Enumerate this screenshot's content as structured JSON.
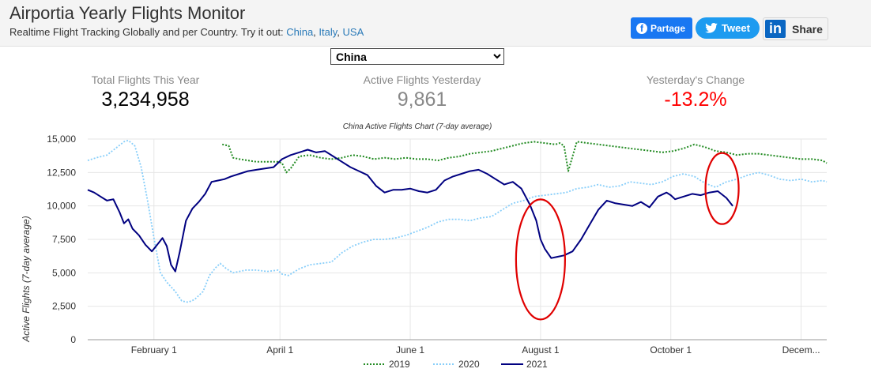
{
  "header": {
    "title": "Airportia Yearly Flights Monitor",
    "subtitle_text": "Realtime Flight Tracking Globally and per Country. Try it out:",
    "links": [
      "China",
      "Italy",
      "USA"
    ],
    "share_buttons": {
      "facebook_label": "Partage",
      "twitter_label": "Tweet",
      "linkedin_label": "Share"
    }
  },
  "country_select": {
    "selected": "China"
  },
  "stats": [
    {
      "label": "Total Flights This Year",
      "value": "3,234,958",
      "color": "#000000"
    },
    {
      "label": "Active Flights Yesterday",
      "value": "9,861",
      "color": "#888888"
    },
    {
      "label": "Yesterday's Change",
      "value": "-13.2%",
      "color": "#ff0000"
    }
  ],
  "colors": {
    "series_2019": "#228b22",
    "series_2020": "#87cefa",
    "series_2021": "#000080",
    "annotation": "#e00000"
  },
  "chart_data": {
    "type": "line",
    "title": "China Active Flights Chart (7-day average)",
    "ylabel": "Active Flights (7-day average)",
    "xlabel": "",
    "ylim": [
      0,
      15000
    ],
    "yticks": [
      "0",
      "2,500",
      "5,000",
      "7,500",
      "10,000",
      "12,500",
      "15,000"
    ],
    "x_range": [
      1,
      347
    ],
    "x_tick_labels": [
      "February 1",
      "April 1",
      "June 1",
      "August 1",
      "October 1",
      "Decem..."
    ],
    "x_tick_days": [
      32,
      91,
      152,
      213,
      274,
      335
    ],
    "grid": true,
    "legend_position": "bottom",
    "annotations": [
      "red ellipse around the early-August drop in 2021",
      "red ellipse around the mid-October decline in 2021"
    ],
    "series": [
      {
        "name": "2019",
        "style": "dotted",
        "x": [
          64,
          67,
          69,
          72,
          80,
          90,
          92,
          94,
          96,
          100,
          105,
          110,
          115,
          120,
          125,
          130,
          135,
          140,
          145,
          150,
          155,
          160,
          165,
          170,
          175,
          180,
          185,
          190,
          195,
          200,
          205,
          210,
          215,
          220,
          222,
          224,
          226,
          230,
          235,
          240,
          245,
          250,
          255,
          260,
          265,
          270,
          275,
          280,
          285,
          290,
          295,
          300,
          305,
          310,
          315,
          320,
          325,
          330,
          335,
          340,
          345,
          347
        ],
        "y": [
          14600,
          14500,
          13600,
          13500,
          13300,
          13300,
          13200,
          12500,
          12800,
          13700,
          13800,
          13600,
          13500,
          13600,
          13800,
          13700,
          13500,
          13600,
          13500,
          13600,
          13500,
          13500,
          13400,
          13600,
          13700,
          13900,
          14000,
          14100,
          14300,
          14500,
          14700,
          14800,
          14700,
          14600,
          14700,
          14500,
          12600,
          14800,
          14700,
          14600,
          14500,
          14400,
          14300,
          14200,
          14100,
          14000,
          14100,
          14300,
          14600,
          14400,
          14100,
          14000,
          13800,
          13900,
          13900,
          13800,
          13700,
          13600,
          13500,
          13500,
          13400,
          13200
        ]
      },
      {
        "name": "2020",
        "style": "dotted",
        "x": [
          1,
          5,
          10,
          14,
          18,
          20,
          23,
          26,
          29,
          32,
          35,
          38,
          42,
          45,
          48,
          51,
          55,
          58,
          61,
          63,
          66,
          69,
          72,
          75,
          80,
          85,
          90,
          92,
          95,
          100,
          105,
          110,
          115,
          120,
          125,
          130,
          135,
          140,
          145,
          150,
          155,
          160,
          165,
          170,
          175,
          180,
          185,
          190,
          195,
          200,
          205,
          210,
          215,
          220,
          225,
          230,
          235,
          240,
          245,
          250,
          255,
          260,
          265,
          270,
          275,
          280,
          285,
          290,
          295,
          300,
          305,
          310,
          315,
          320,
          325,
          330,
          335,
          340,
          345,
          347
        ],
        "y": [
          13400,
          13600,
          13800,
          14300,
          14800,
          14900,
          14500,
          12900,
          10400,
          7600,
          5000,
          4300,
          3600,
          2900,
          2800,
          3000,
          3600,
          4800,
          5400,
          5700,
          5300,
          5000,
          5100,
          5200,
          5200,
          5100,
          5200,
          4900,
          4800,
          5300,
          5600,
          5700,
          5800,
          6500,
          7000,
          7300,
          7500,
          7500,
          7600,
          7800,
          8100,
          8400,
          8800,
          9000,
          9000,
          8900,
          9100,
          9200,
          9700,
          10200,
          10400,
          10700,
          10800,
          10900,
          11000,
          11300,
          11400,
          11600,
          11400,
          11500,
          11800,
          11700,
          11600,
          11800,
          12200,
          12400,
          12200,
          11700,
          11400,
          11800,
          12000,
          12300,
          12500,
          12300,
          12000,
          11900,
          12000,
          11800,
          11900,
          11800
        ]
      },
      {
        "name": "2021",
        "style": "solid",
        "x": [
          1,
          4,
          7,
          10,
          13,
          16,
          18,
          20,
          22,
          25,
          28,
          31,
          34,
          36,
          38,
          40,
          42,
          44,
          47,
          50,
          53,
          56,
          59,
          62,
          65,
          68,
          72,
          76,
          80,
          84,
          88,
          92,
          96,
          100,
          104,
          108,
          112,
          116,
          120,
          124,
          128,
          132,
          136,
          140,
          144,
          148,
          152,
          156,
          160,
          164,
          168,
          172,
          176,
          180,
          184,
          188,
          192,
          196,
          200,
          204,
          208,
          211,
          213,
          215,
          218,
          221,
          224,
          228,
          232,
          236,
          240,
          244,
          248,
          252,
          256,
          260,
          264,
          268,
          272,
          274,
          276,
          280,
          284,
          288,
          292,
          296,
          300,
          303
        ],
        "y": [
          11200,
          11000,
          10700,
          10400,
          10500,
          9500,
          8700,
          9000,
          8300,
          7800,
          7100,
          6600,
          7200,
          7600,
          7000,
          5600,
          5100,
          6500,
          8900,
          9800,
          10300,
          10900,
          11800,
          11900,
          12000,
          12200,
          12400,
          12600,
          12700,
          12800,
          12900,
          13500,
          13800,
          14000,
          14200,
          14000,
          14100,
          13700,
          13300,
          12900,
          12600,
          12300,
          11500,
          11000,
          11200,
          11200,
          11300,
          11100,
          11000,
          11200,
          11900,
          12200,
          12400,
          12600,
          12700,
          12400,
          12000,
          11600,
          11800,
          11300,
          10100,
          8900,
          7500,
          6800,
          6100,
          6200,
          6300,
          6600,
          7500,
          8600,
          9700,
          10400,
          10200,
          10100,
          10000,
          10300,
          9900,
          10700,
          11000,
          10800,
          10500,
          10700,
          10900,
          10800,
          11000,
          11100,
          10600,
          10000
        ]
      }
    ]
  }
}
